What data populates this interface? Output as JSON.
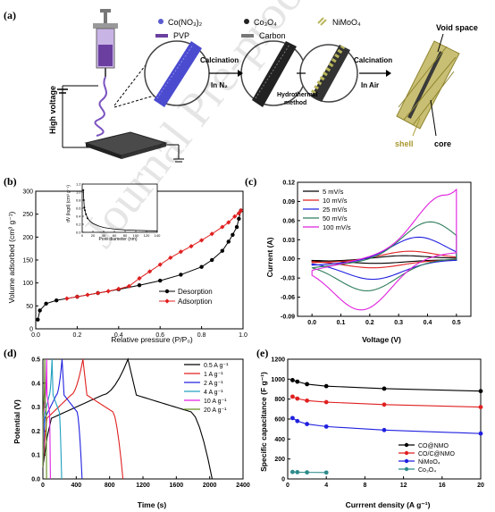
{
  "panel_labels": {
    "a": "(a)",
    "b": "(b)",
    "c": "(c)",
    "d": "(d)",
    "e": "(e)"
  },
  "watermark": "Journal Pre-proof",
  "schematic": {
    "high_voltage": "High voltage",
    "legend_co": "Co(NO₃)₂",
    "legend_pvp": "PVP",
    "legend_co3o4": "Co₃O₄",
    "legend_carbon": "Carbon",
    "legend_nimoo4": "NiMoO₄",
    "step1": "Calcination",
    "step1_sub": "In N₂",
    "step2": "Hydrothermal",
    "step2_sub": "method",
    "step3": "Calcination",
    "step3_sub": "In Air",
    "void_space": "Void space",
    "shell": "shell",
    "core": "core",
    "colors": {
      "co": "#5a5ad0",
      "pvp": "#6a3fa0",
      "co3o4": "#222222",
      "carbon": "#777777",
      "nimoo4": "#b8b55a",
      "shell": "#a8962e"
    }
  },
  "panel_b": {
    "xlabel": "Relative pressure (P/P₀)",
    "ylabel": "Volume adsorbed (cm³ g⁻¹)",
    "legend": [
      "Desorption",
      "Adsorption"
    ],
    "inset_xlabel": "Pore diameter (nm)",
    "inset_ylabel": "dV (logd) (cm³ g⁻¹)"
  },
  "panel_c": {
    "xlabel": "Voltage (V)",
    "ylabel": "Current (A)",
    "legend": [
      "5  mV/s",
      "10  mV/s",
      "25  mV/s",
      "50  mV/s",
      "100 mV/s"
    ]
  },
  "panel_d": {
    "xlabel": "Time (s)",
    "ylabel": "Potential (V)",
    "legend": [
      "0.5 A g⁻¹",
      "1  A g⁻¹",
      "2  A g⁻¹",
      "4  A g⁻¹",
      "10  A g⁻¹",
      "20  A g⁻¹"
    ]
  },
  "panel_e": {
    "xlabel": "Currrent density (A g⁻¹)",
    "ylabel": "Specific capacitance (F g⁻¹)",
    "legend": [
      "CO@NMO",
      "CO/C@NMO",
      "NiMoO₄",
      "Co₃O₄"
    ]
  },
  "chart_data": [
    {
      "type": "line",
      "panel": "b",
      "xlim": [
        0,
        1
      ],
      "ylim": [
        0,
        300
      ],
      "xticks": [
        "0.0",
        "0.2",
        "0.4",
        "0.6",
        "0.8",
        "1.0"
      ],
      "yticks": [
        "0",
        "50",
        "100",
        "150",
        "200",
        "250",
        "300"
      ],
      "colors": [
        "#000000",
        "#e02020"
      ],
      "series": [
        {
          "name": "Desorption",
          "x": [
            0.01,
            0.02,
            0.05,
            0.1,
            0.2,
            0.3,
            0.4,
            0.5,
            0.6,
            0.7,
            0.8,
            0.85,
            0.9,
            0.93,
            0.95,
            0.97,
            0.98,
            0.99
          ],
          "y": [
            20,
            40,
            55,
            62,
            70,
            78,
            86,
            95,
            105,
            118,
            135,
            150,
            170,
            190,
            205,
            222,
            240,
            258
          ]
        },
        {
          "name": "Adsorption",
          "x": [
            0.15,
            0.2,
            0.25,
            0.3,
            0.35,
            0.4,
            0.45,
            0.5,
            0.55,
            0.6,
            0.65,
            0.7,
            0.75,
            0.8,
            0.85,
            0.9,
            0.93,
            0.96,
            0.98,
            0.99
          ],
          "y": [
            66,
            70,
            74,
            78,
            82,
            87,
            93,
            110,
            125,
            140,
            155,
            168,
            180,
            193,
            207,
            222,
            232,
            245,
            252,
            258
          ]
        }
      ],
      "inset": {
        "xlim": [
          0,
          140
        ],
        "ylim": [
          0,
          1.2
        ],
        "xticks": [
          "0",
          "20",
          "40",
          "60",
          "80",
          "100",
          "120",
          "140"
        ],
        "yticks": [
          "0.0",
          "0.2",
          "0.4",
          "0.6",
          "0.8",
          "1.0",
          "1.2"
        ],
        "x": [
          2,
          3,
          4,
          5,
          7,
          10,
          15,
          20,
          30,
          40,
          60,
          80,
          100,
          120,
          140
        ],
        "y": [
          1.05,
          0.8,
          0.62,
          0.55,
          0.45,
          0.35,
          0.27,
          0.22,
          0.16,
          0.12,
          0.08,
          0.06,
          0.05,
          0.04,
          0.035
        ]
      }
    },
    {
      "type": "line",
      "panel": "c",
      "xlim": [
        -0.05,
        0.55
      ],
      "ylim": [
        -0.09,
        0.12
      ],
      "xticks": [
        "0.0",
        "0.1",
        "0.2",
        "0.3",
        "0.4",
        "0.5"
      ],
      "yticks": [
        "0.12",
        "0.09",
        "0.06",
        "0.03",
        "0.00",
        "-0.03",
        "-0.06",
        "-0.09"
      ],
      "colors": [
        "#000000",
        "#e02020",
        "#2020e0",
        "#2e7d5b",
        "#e020e0"
      ],
      "series": [
        {
          "name": "5  mV/s",
          "anodic_peak": [
            0.32,
            0.005
          ],
          "cathodic_peak": [
            0.22,
            -0.007
          ],
          "v_end": 0.5,
          "i_start": -0.004,
          "i_end": 0.003
        },
        {
          "name": "10  mV/s",
          "anodic_peak": [
            0.34,
            0.012
          ],
          "cathodic_peak": [
            0.21,
            -0.014
          ],
          "v_end": 0.5,
          "i_start": -0.006,
          "i_end": 0.006
        },
        {
          "name": "25  mV/s",
          "anodic_peak": [
            0.37,
            0.034
          ],
          "cathodic_peak": [
            0.21,
            -0.032
          ],
          "v_end": 0.5,
          "i_start": -0.01,
          "i_end": 0.016
        },
        {
          "name": "50  mV/s",
          "anodic_peak": [
            0.41,
            0.058
          ],
          "cathodic_peak": [
            0.19,
            -0.05
          ],
          "v_end": 0.5,
          "i_start": -0.014,
          "i_end": 0.035
        },
        {
          "name": "100 mV/s",
          "anodic_peak": [
            0.46,
            0.1
          ],
          "cathodic_peak": [
            0.17,
            -0.08
          ],
          "v_end": 0.5,
          "i_start": -0.018,
          "i_end": 0.095
        }
      ]
    },
    {
      "type": "line",
      "panel": "d",
      "xlim": [
        0,
        2400
      ],
      "ylim": [
        0,
        0.5
      ],
      "xticks": [
        "0",
        "400",
        "800",
        "1200",
        "1600",
        "2000",
        "2400"
      ],
      "yticks": [
        "0.0",
        "0.1",
        "0.2",
        "0.3",
        "0.4",
        "0.5"
      ],
      "colors": [
        "#000000",
        "#e02020",
        "#2020e0",
        "#20a0c0",
        "#e020e0",
        "#609020"
      ],
      "series": [
        {
          "name": "0.5 A g⁻¹",
          "charge_end": 1020,
          "discharge_end": 2030
        },
        {
          "name": "1  A g⁻¹",
          "charge_end": 480,
          "discharge_end": 960
        },
        {
          "name": "2  A g⁻¹",
          "charge_end": 230,
          "discharge_end": 470
        },
        {
          "name": "4  A g⁻¹",
          "charge_end": 110,
          "discharge_end": 225
        },
        {
          "name": "10  A g⁻¹",
          "charge_end": 45,
          "discharge_end": 90
        },
        {
          "name": "20  A g⁻¹",
          "charge_end": 22,
          "discharge_end": 44
        }
      ]
    },
    {
      "type": "line",
      "panel": "e",
      "xlim": [
        0,
        20
      ],
      "ylim": [
        0,
        1200
      ],
      "xticks": [
        "0",
        "4",
        "8",
        "12",
        "16",
        "20"
      ],
      "yticks": [
        "0",
        "200",
        "400",
        "600",
        "800",
        "1000",
        "1200"
      ],
      "colors": [
        "#000000",
        "#e02020",
        "#2020e0",
        "#2e8b8b"
      ],
      "x": [
        0.5,
        1,
        2,
        4,
        10,
        20
      ],
      "series": [
        {
          "name": "CO@NMO",
          "x": [
            0.5,
            1,
            2,
            4,
            10,
            20
          ],
          "y": [
            990,
            975,
            950,
            930,
            905,
            880
          ]
        },
        {
          "name": "CO/C@NMO",
          "x": [
            0.5,
            1,
            2,
            4,
            10,
            20
          ],
          "y": [
            825,
            805,
            785,
            770,
            745,
            720
          ]
        },
        {
          "name": "NiMoO₄",
          "x": [
            0.5,
            1,
            2,
            4,
            10,
            20
          ],
          "y": [
            610,
            580,
            550,
            525,
            490,
            455
          ]
        },
        {
          "name": "Co₃O₄",
          "x": [
            0.5,
            1,
            2,
            4
          ],
          "y": [
            70,
            68,
            66,
            64
          ]
        }
      ]
    }
  ]
}
